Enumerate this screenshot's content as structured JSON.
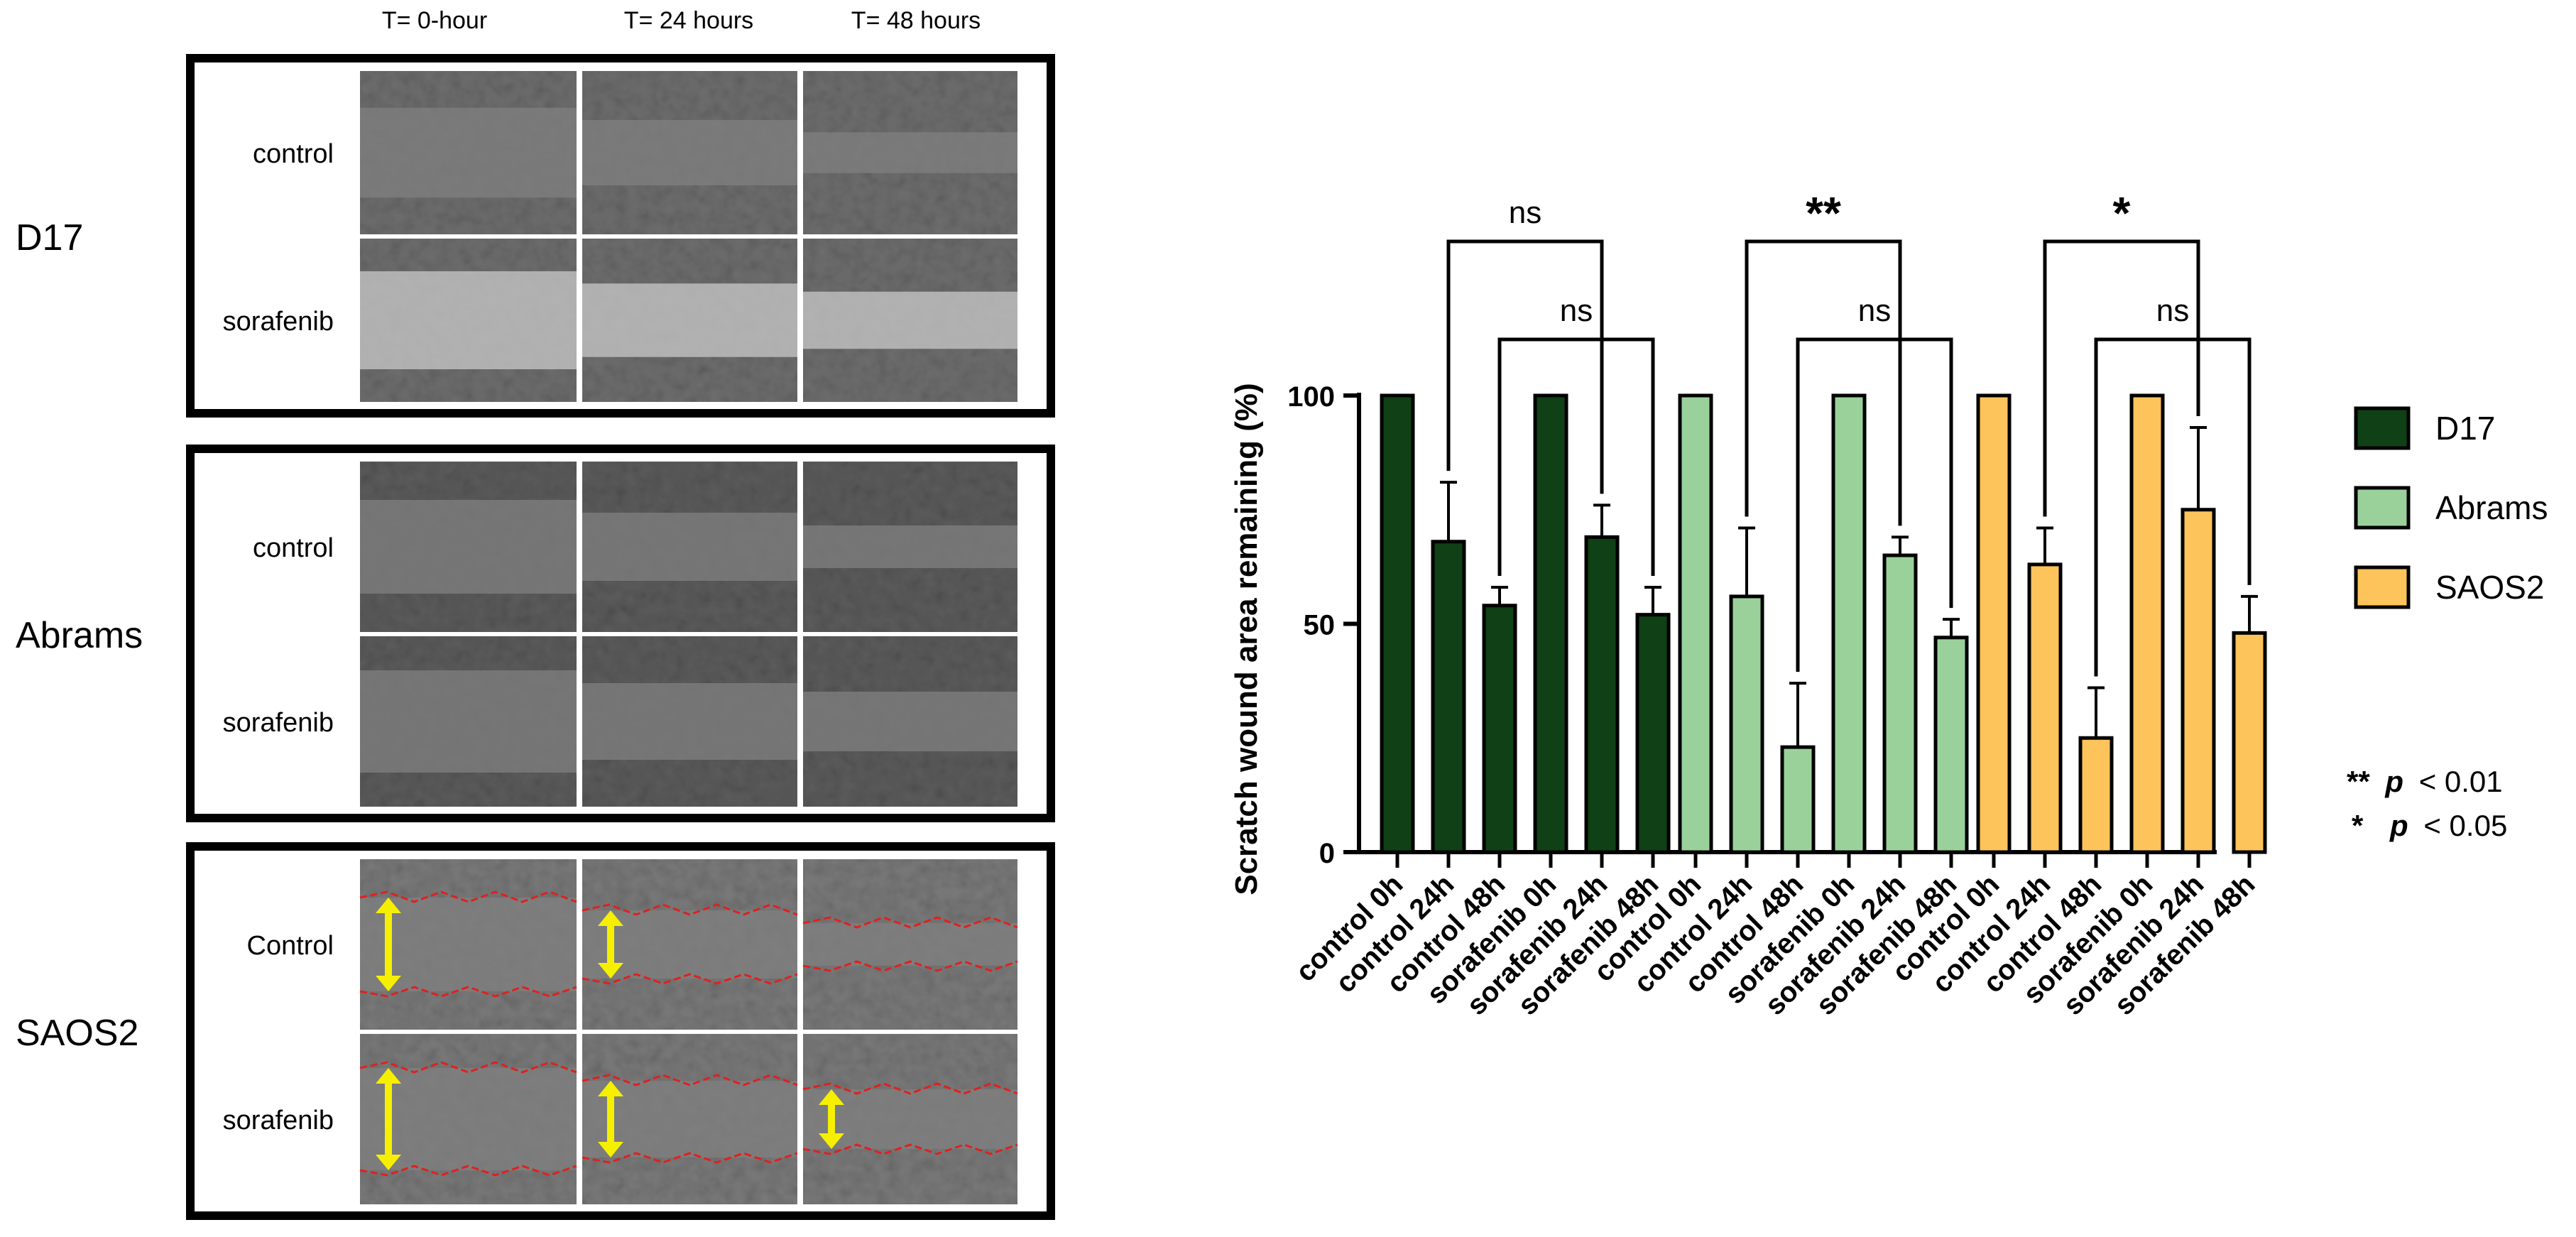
{
  "left_panel": {
    "time_headers": [
      "T= 0-hour",
      "T= 24 hours",
      "T= 48 hours"
    ],
    "cell_lines": [
      {
        "name": "D17",
        "rows": [
          "control",
          "sorafenib"
        ],
        "tone": "#6e6e6e"
      },
      {
        "name": "Abrams",
        "rows": [
          "control",
          "sorafenib"
        ],
        "tone": "#5c5c5c"
      },
      {
        "name": "SAOS2",
        "rows": [
          "Control",
          "sorafenib"
        ],
        "tone": "#7a7a7a"
      }
    ],
    "colors": {
      "wound_outline": "#e02020",
      "arrow": "#f6f000"
    }
  },
  "chart_data": {
    "type": "bar",
    "ylabel": "Scratch wound area remaining (%)",
    "ylim": [
      0,
      100
    ],
    "yticks": [
      0,
      50,
      100
    ],
    "categories": [
      "control 0h",
      "control 24h",
      "control 48h",
      "sorafenib 0h",
      "sorafenib 24h",
      "sorafenib 48h"
    ],
    "series": [
      {
        "name": "D17",
        "color": "#0f4016",
        "values": [
          100,
          68,
          54,
          100,
          69,
          52
        ],
        "errors": [
          0,
          13,
          4,
          0,
          7,
          6
        ]
      },
      {
        "name": "Abrams",
        "color": "#9ad19a",
        "values": [
          100,
          56,
          23,
          100,
          65,
          47
        ],
        "errors": [
          0,
          15,
          14,
          0,
          4,
          4
        ]
      },
      {
        "name": "SAOS2",
        "color": "#fcc45a",
        "values": [
          100,
          63,
          25,
          100,
          75,
          48
        ],
        "errors": [
          0,
          8,
          11,
          0,
          18,
          8
        ]
      }
    ],
    "legend": {
      "placement": "right"
    },
    "significance": [
      {
        "series": 0,
        "upper_label": "ns",
        "lower_label": "ns"
      },
      {
        "series": 1,
        "upper_label": "**",
        "lower_label": "ns"
      },
      {
        "series": 2,
        "upper_label": "*",
        "lower_label": "ns"
      }
    ],
    "notes": {
      "line1_stars": "**",
      "line1_p": "p",
      "line1_rest": "< 0.01",
      "line2_stars": "*",
      "line2_p": "p",
      "line2_rest": "< 0.05"
    }
  }
}
